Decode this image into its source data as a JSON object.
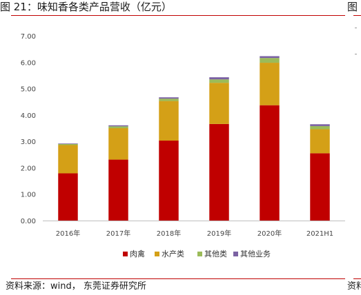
{
  "figure": {
    "title": "图 21：味知香各类产品营收（亿元）",
    "title_right_fragment": "图",
    "source": "资料来源：wind， 东莞证券研究所",
    "source_right_fragment": "资料"
  },
  "colors": {
    "rule": "#c00000",
    "series": [
      "#c00000",
      "#d4a017",
      "#9bbb59",
      "#7b62a3"
    ]
  },
  "chart_data": {
    "type": "bar",
    "stacked": true,
    "categories": [
      "2016年",
      "2017年",
      "2018年",
      "2019年",
      "2020年",
      "2021H1"
    ],
    "series": [
      {
        "name": "肉禽",
        "values": [
          1.79,
          2.31,
          3.03,
          3.66,
          4.37,
          2.55
        ]
      },
      {
        "name": "水产类",
        "values": [
          1.07,
          1.19,
          1.5,
          1.56,
          1.61,
          0.91
        ]
      },
      {
        "name": "其他类",
        "values": [
          0.04,
          0.07,
          0.09,
          0.13,
          0.18,
          0.12
        ]
      },
      {
        "name": "其他业务",
        "values": [
          0.02,
          0.04,
          0.05,
          0.08,
          0.07,
          0.07
        ]
      }
    ],
    "ylim": [
      0,
      7
    ],
    "yticks": [
      "0.00",
      "1.00",
      "2.00",
      "3.00",
      "4.00",
      "5.00",
      "6.00",
      "7.00"
    ],
    "grid": false,
    "legend": "bottom"
  }
}
